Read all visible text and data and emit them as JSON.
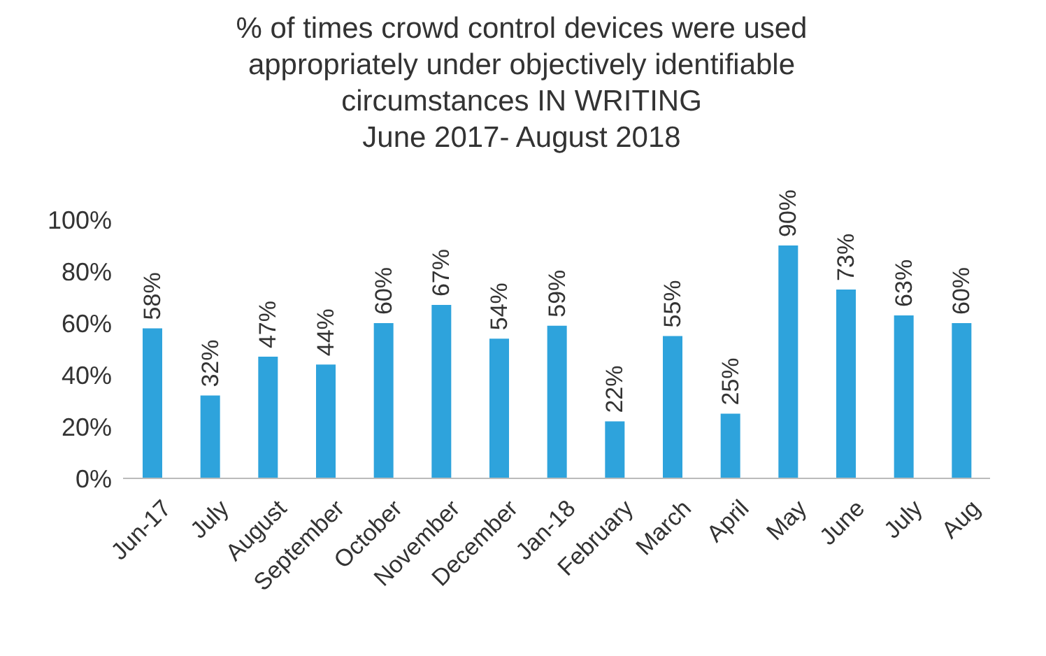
{
  "chart_data": {
    "type": "bar",
    "title": "% of times crowd control devices were used appropriately under objectively identifiable circumstances IN WRITING",
    "subtitle": "June 2017- August 2018",
    "categories": [
      "Jun-17",
      "July",
      "August",
      "September",
      "October",
      "November",
      "December",
      "Jan-18",
      "February",
      "March",
      "April",
      "May",
      "June",
      "July",
      "Aug"
    ],
    "values": [
      58,
      32,
      47,
      44,
      60,
      67,
      54,
      59,
      22,
      55,
      25,
      90,
      73,
      63,
      60
    ],
    "value_labels": [
      "58%",
      "32%",
      "47%",
      "44%",
      "60%",
      "67%",
      "54%",
      "59%",
      "22%",
      "55%",
      "25%",
      "90%",
      "73%",
      "63%",
      "60%"
    ],
    "color": "#2ea3dc",
    "ylim": [
      0,
      100
    ],
    "yticks": [
      {
        "value": 0,
        "label": "0%"
      },
      {
        "value": 20,
        "label": "20%"
      },
      {
        "value": 40,
        "label": "40%"
      },
      {
        "value": 60,
        "label": "60%"
      },
      {
        "value": 80,
        "label": "80%"
      },
      {
        "value": 100,
        "label": "100%"
      }
    ]
  }
}
